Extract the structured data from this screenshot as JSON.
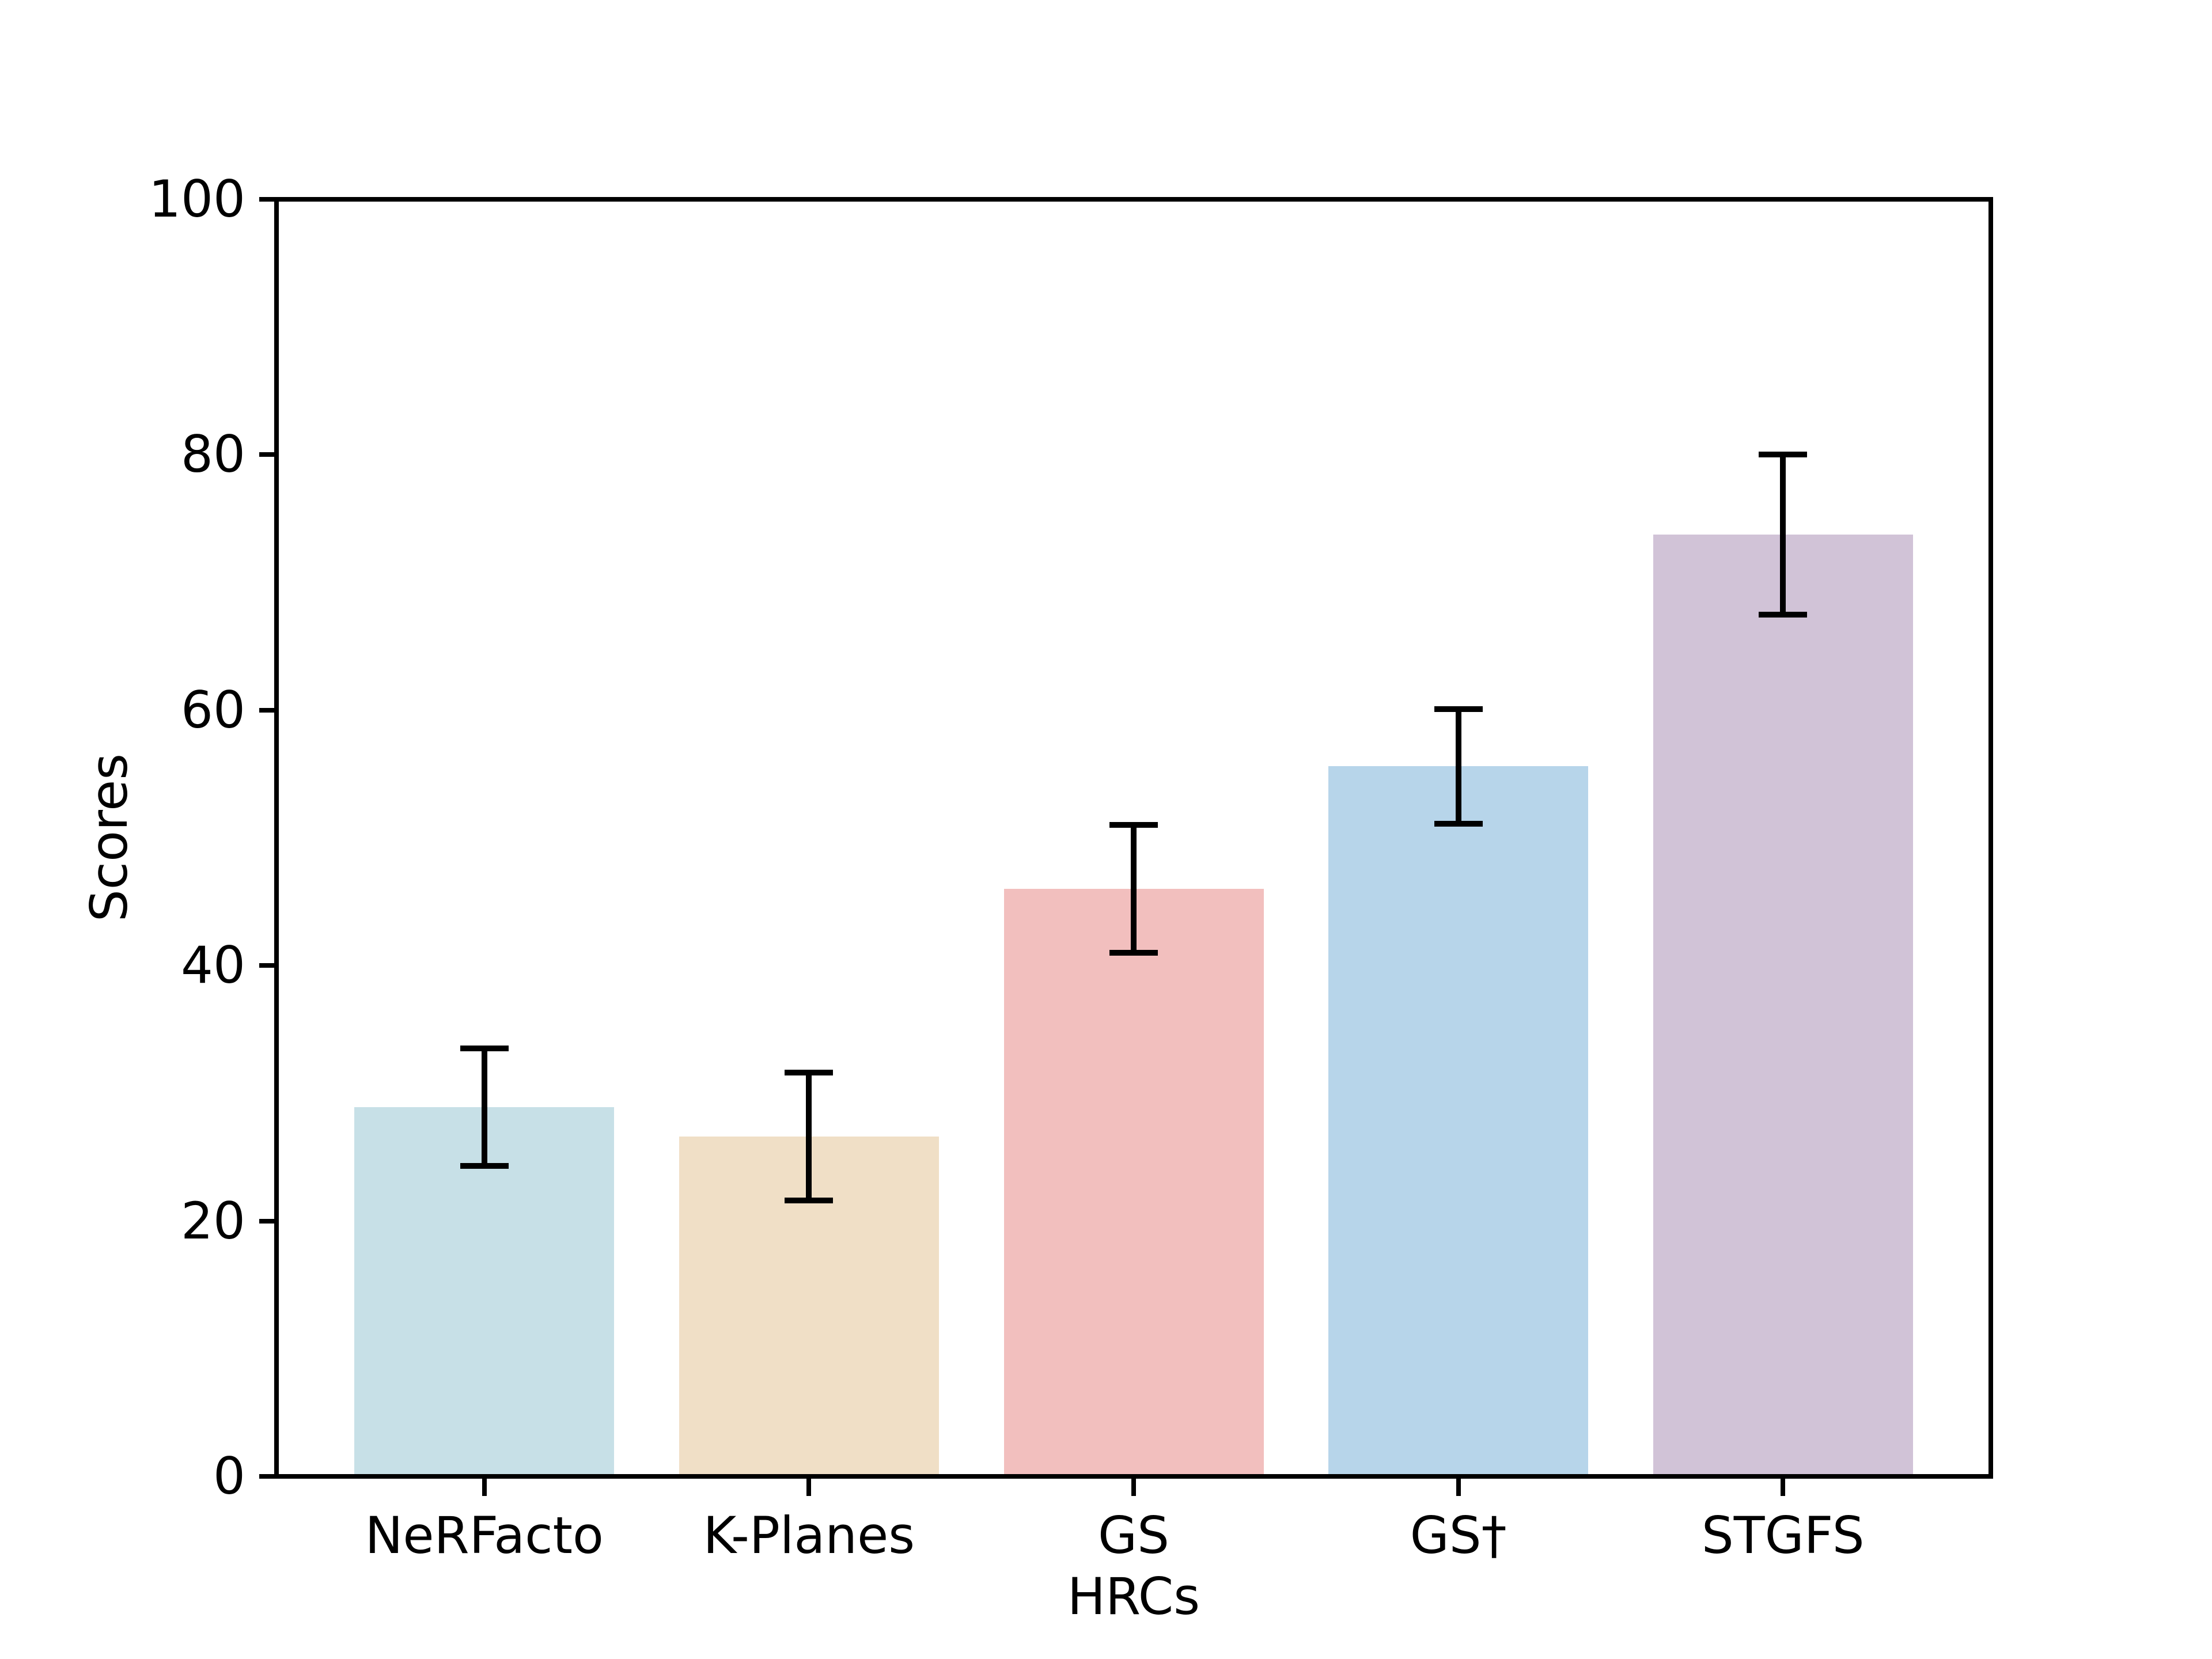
{
  "figure": {
    "background": "#ffffff",
    "text_color": "#000000"
  },
  "chart_data": {
    "type": "bar",
    "title": "",
    "xlabel": "HRCs",
    "ylabel": "Scores",
    "categories": [
      "NeRFacto",
      "K-Planes",
      "GS",
      "GS†",
      "STGFS"
    ],
    "values": [
      28.9,
      26.6,
      46.0,
      55.6,
      73.75
    ],
    "errors": [
      4.6,
      5.0,
      5.0,
      4.5,
      6.25
    ],
    "bar_colors": [
      "#c7e0e7",
      "#f0dfc6",
      "#f2bfbe",
      "#b7d5ea",
      "#d1c3d7"
    ],
    "error_bar_color": "#000000",
    "ylim": [
      0,
      100
    ],
    "yticks": [
      0,
      20,
      40,
      60,
      80,
      100
    ],
    "ytick_labels": [
      "0",
      "20",
      "40",
      "60",
      "80",
      "100"
    ],
    "grid": false,
    "legend": null
  }
}
